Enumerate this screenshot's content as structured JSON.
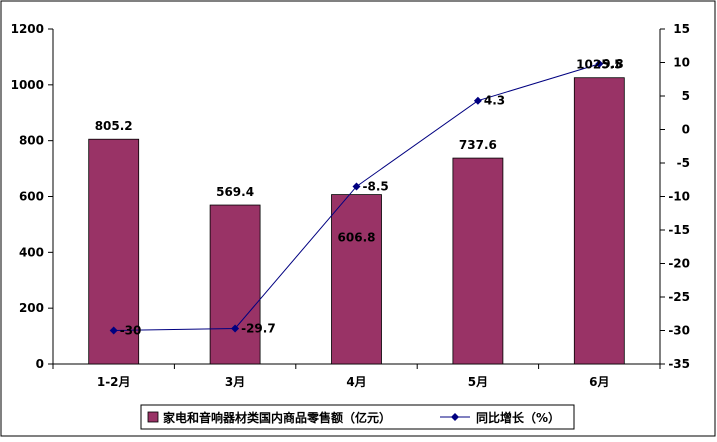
{
  "chart_data": {
    "type": "bar",
    "categories": [
      "1-2月",
      "3月",
      "4月",
      "5月",
      "6月"
    ],
    "series": [
      {
        "name": "家电和音响器材类国内商品零售额（亿元）",
        "type": "bar",
        "axis": "left",
        "values": [
          805.2,
          569.4,
          606.8,
          737.6,
          1025.5
        ],
        "labels": [
          "805.2",
          "569.4",
          "606.8",
          "737.6",
          "1025.5"
        ],
        "color": "#993366"
      },
      {
        "name": "同比增长（%）",
        "type": "line",
        "axis": "right",
        "values": [
          -30,
          -29.7,
          -8.5,
          4.3,
          9.8
        ],
        "labels": [
          "-30",
          "-29.7",
          "-8.5",
          "4.3",
          "9.8"
        ],
        "color": "#000080"
      }
    ],
    "y_left": {
      "range": [
        0,
        1200
      ],
      "ticks": [
        "0",
        "200",
        "400",
        "600",
        "800",
        "1000",
        "1200"
      ]
    },
    "y_right": {
      "range": [
        -35,
        15
      ],
      "ticks": [
        "-35",
        "-30",
        "-25",
        "-20",
        "-15",
        "-10",
        "-5",
        "0",
        "5",
        "10",
        "15"
      ]
    },
    "grid": false,
    "legend_position": "bottom"
  }
}
